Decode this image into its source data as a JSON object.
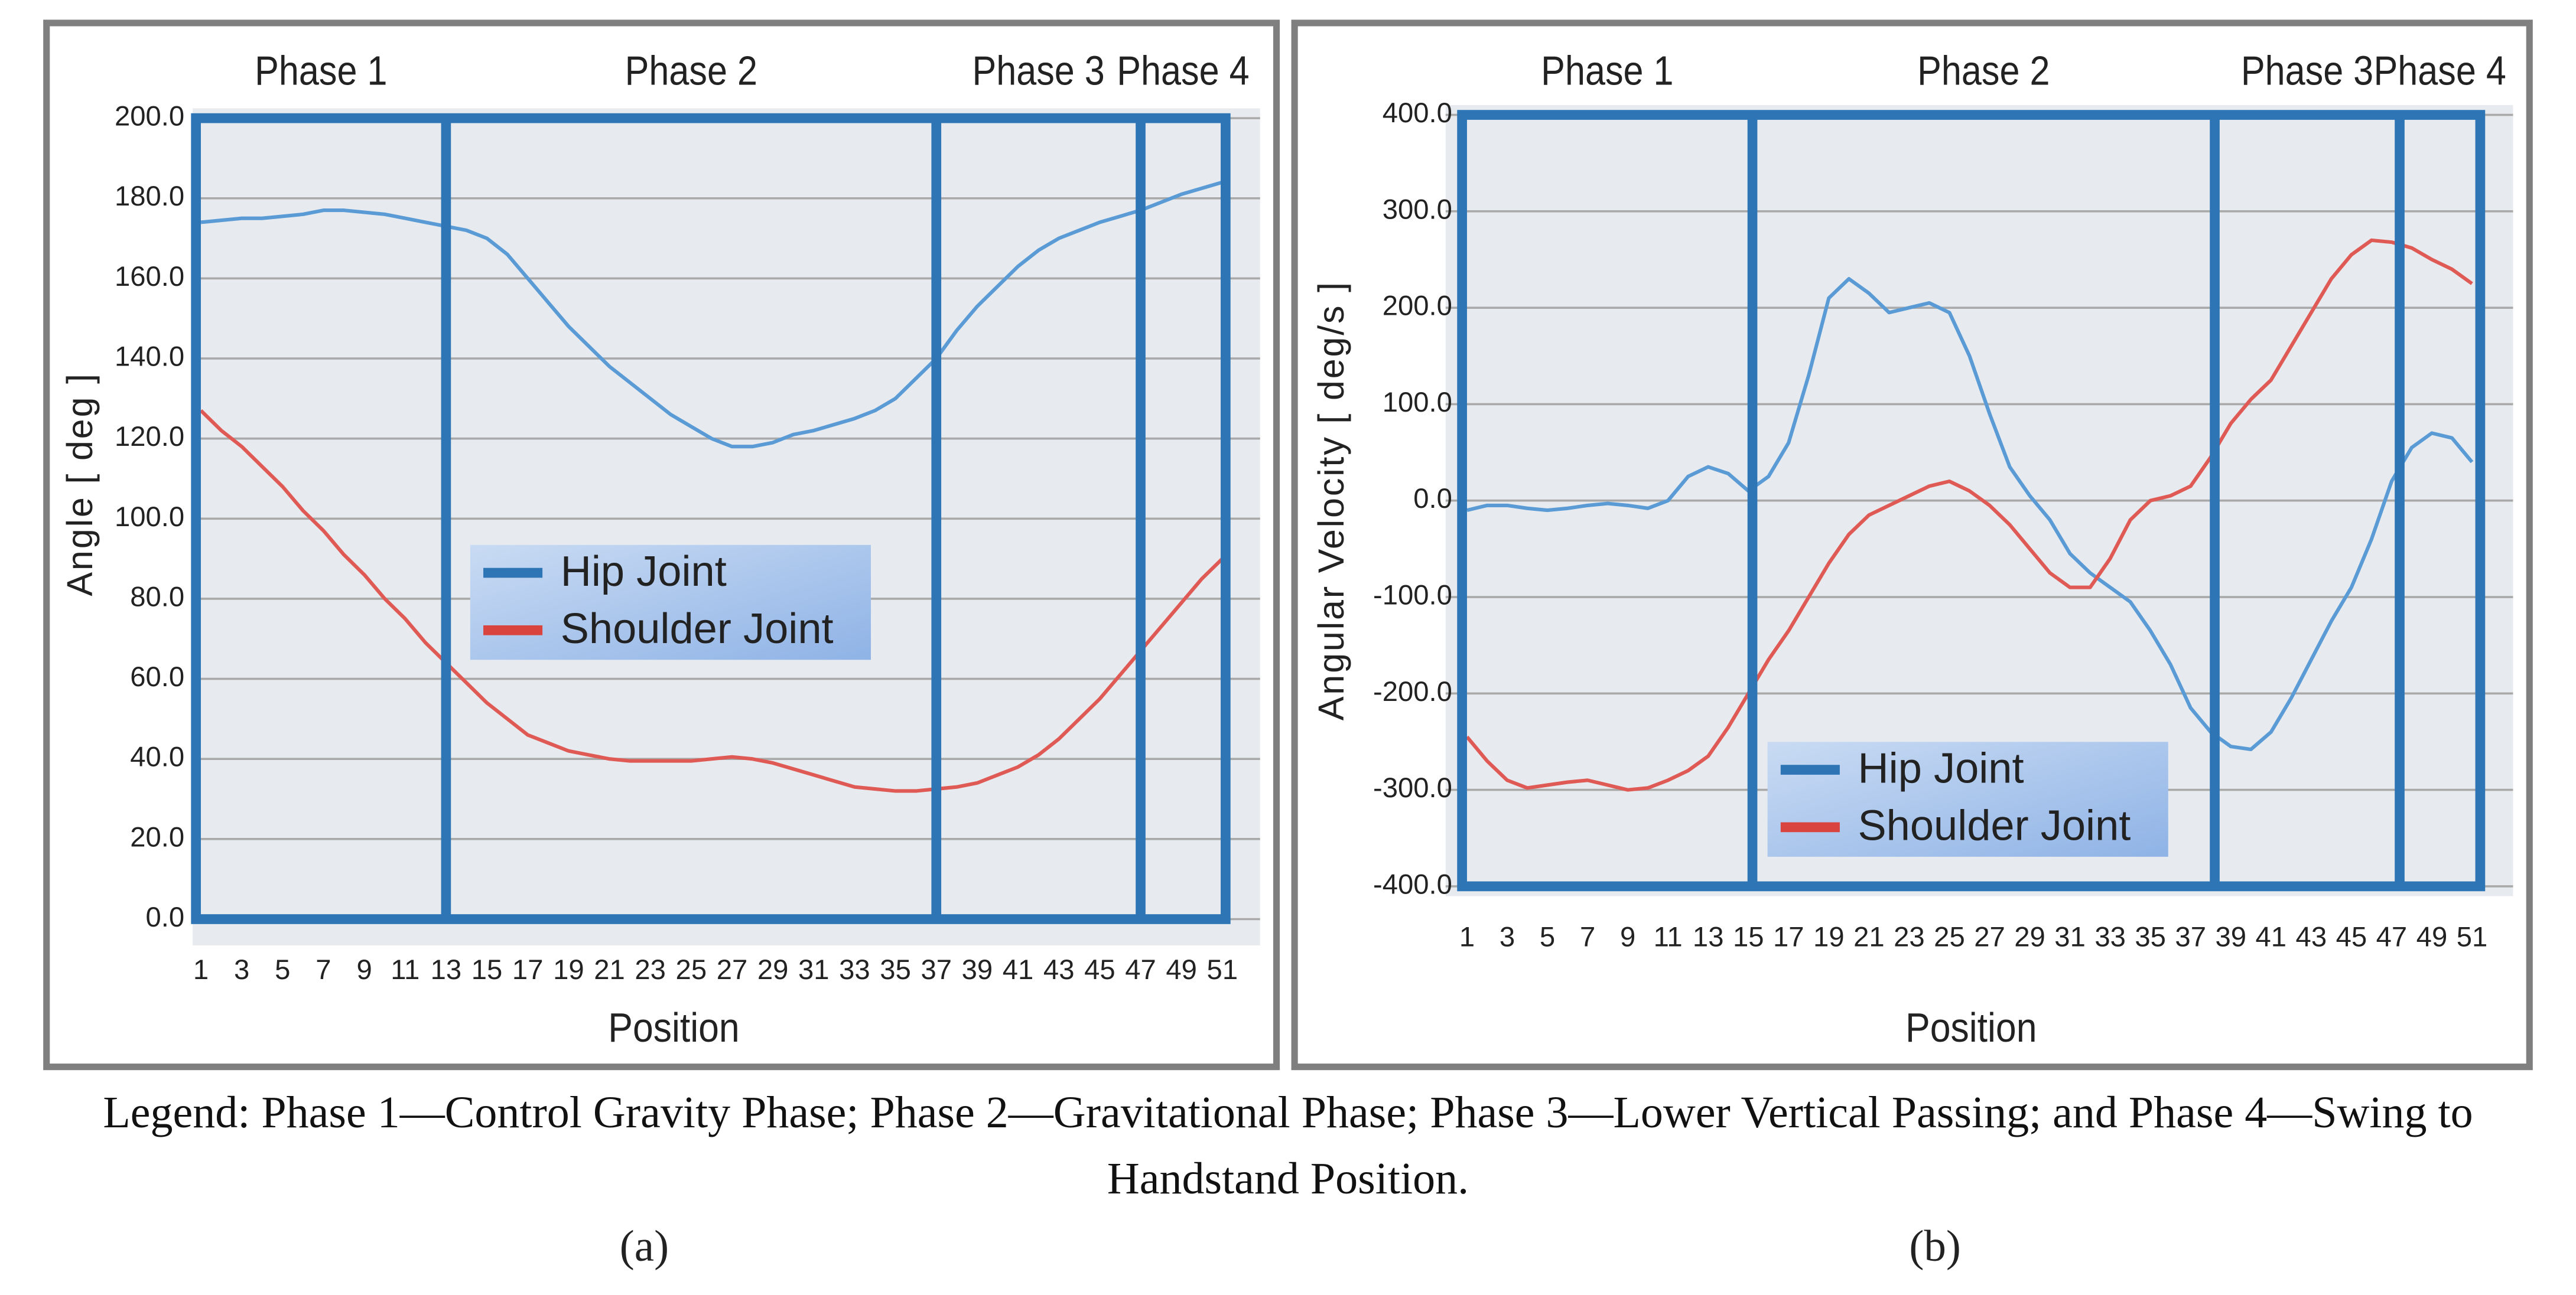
{
  "chart_data": [
    {
      "type": "line",
      "y_label": "Angle [ deg ]",
      "x_label": "Position",
      "panel_label": "(a)",
      "x": [
        1,
        2,
        3,
        4,
        5,
        6,
        7,
        8,
        9,
        10,
        11,
        12,
        13,
        14,
        15,
        16,
        17,
        18,
        19,
        20,
        21,
        22,
        23,
        24,
        25,
        26,
        27,
        28,
        29,
        30,
        31,
        32,
        33,
        34,
        35,
        36,
        37,
        38,
        39,
        40,
        41,
        42,
        43,
        44,
        45,
        46,
        47,
        48,
        49,
        50,
        51
      ],
      "xlim": [
        1,
        51
      ],
      "xticks": [
        1,
        3,
        5,
        7,
        9,
        11,
        13,
        15,
        17,
        19,
        21,
        23,
        25,
        27,
        29,
        31,
        33,
        35,
        37,
        39,
        41,
        43,
        45,
        47,
        49,
        51
      ],
      "ylim": [
        0,
        200
      ],
      "yticks": [
        {
          "value": 0,
          "label": "0.0"
        },
        {
          "value": 20,
          "label": "20.0"
        },
        {
          "value": 40,
          "label": "40.0"
        },
        {
          "value": 60,
          "label": "60.0"
        },
        {
          "value": 80,
          "label": "80.0"
        },
        {
          "value": 100,
          "label": "100.0"
        },
        {
          "value": 120,
          "label": "120.0"
        },
        {
          "value": 140,
          "label": "140.0"
        },
        {
          "value": 160,
          "label": "160.0"
        },
        {
          "value": 180,
          "label": "180.0"
        },
        {
          "value": 200,
          "label": "200.0"
        }
      ],
      "grid": true,
      "phases": [
        "Phase 1",
        "Phase 2",
        "Phase 3",
        "Phase 4"
      ],
      "phase_boundaries": [
        13,
        37,
        47
      ],
      "series": [
        {
          "name": "Hip Joint",
          "color": "#5b9bd5",
          "legend_color": "#2e75b6",
          "values": [
            174,
            174.5,
            175,
            175,
            175.5,
            176,
            177,
            177,
            176.5,
            176,
            175,
            174,
            173,
            172,
            170,
            166,
            160,
            154,
            148,
            143,
            138,
            134,
            130,
            126,
            123,
            120,
            118,
            118,
            119,
            121,
            122,
            123.5,
            125,
            127,
            130,
            135,
            140,
            147,
            153,
            158,
            163,
            167,
            170,
            172,
            174,
            175.5,
            177,
            179,
            181,
            182.5,
            184
          ]
        },
        {
          "name": "Shoulder Joint",
          "color": "#e05a55",
          "legend_color": "#d9443f",
          "values": [
            127,
            122,
            118,
            113,
            108,
            102,
            97,
            91,
            86,
            80,
            75,
            69,
            64,
            59,
            54,
            50,
            46,
            44,
            42,
            41,
            40,
            39.5,
            39.5,
            39.5,
            39.5,
            40,
            40.5,
            40,
            39,
            37.5,
            36,
            34.5,
            33,
            32.5,
            32,
            32,
            32.5,
            33,
            34,
            36,
            38,
            41,
            45,
            50,
            55,
            61,
            67,
            73,
            79,
            85,
            90
          ]
        }
      ]
    },
    {
      "type": "line",
      "y_label": "Angular Velocity [ deg/s ]",
      "x_label": "Position",
      "panel_label": "(b)",
      "x": [
        1,
        2,
        3,
        4,
        5,
        6,
        7,
        8,
        9,
        10,
        11,
        12,
        13,
        14,
        15,
        16,
        17,
        18,
        19,
        20,
        21,
        22,
        23,
        24,
        25,
        26,
        27,
        28,
        29,
        30,
        31,
        32,
        33,
        34,
        35,
        36,
        37,
        38,
        39,
        40,
        41,
        42,
        43,
        44,
        45,
        46,
        47,
        48,
        49,
        50,
        51
      ],
      "xlim": [
        1,
        51
      ],
      "xticks": [
        1,
        3,
        5,
        7,
        9,
        11,
        13,
        15,
        17,
        19,
        21,
        23,
        25,
        27,
        29,
        31,
        33,
        35,
        37,
        39,
        41,
        43,
        45,
        47,
        49,
        51
      ],
      "ylim": [
        -400,
        400
      ],
      "yticks": [
        {
          "value": -400,
          "label": "-400.0"
        },
        {
          "value": -300,
          "label": "-300.0"
        },
        {
          "value": -200,
          "label": "-200.0"
        },
        {
          "value": -100,
          "label": "-100.0"
        },
        {
          "value": 0,
          "label": "0.0"
        },
        {
          "value": 100,
          "label": "100.0"
        },
        {
          "value": 200,
          "label": "200.0"
        },
        {
          "value": 300,
          "label": "300.0"
        },
        {
          "value": 400,
          "label": "400.0"
        }
      ],
      "grid": true,
      "phases": [
        "Phase 1",
        "Phase 2",
        "Phase 3",
        "Phase 4"
      ],
      "phase_boundaries": [
        15.2,
        38.2,
        47.4
      ],
      "series": [
        {
          "name": "Hip Joint",
          "color": "#5b9bd5",
          "legend_color": "#2e75b6",
          "values": [
            -10,
            -5,
            -5,
            -8,
            -10,
            -8,
            -5,
            -3,
            -5,
            -8,
            0,
            25,
            35,
            28,
            10,
            25,
            60,
            130,
            210,
            230,
            215,
            195,
            200,
            205,
            195,
            150,
            90,
            35,
            5,
            -20,
            -55,
            -75,
            -90,
            -105,
            -135,
            -170,
            -215,
            -240,
            -255,
            -258,
            -240,
            -205,
            -165,
            -125,
            -90,
            -40,
            20,
            55,
            70,
            65,
            40
          ]
        },
        {
          "name": "Shoulder Joint",
          "color": "#e05a55",
          "legend_color": "#d9443f",
          "values": [
            -245,
            -270,
            -290,
            -298,
            -295,
            -292,
            -290,
            -295,
            -300,
            -298,
            -290,
            -280,
            -265,
            -235,
            -200,
            -165,
            -135,
            -100,
            -65,
            -35,
            -15,
            -5,
            5,
            15,
            20,
            10,
            -5,
            -25,
            -50,
            -75,
            -90,
            -90,
            -60,
            -20,
            0,
            5,
            15,
            45,
            80,
            105,
            125,
            160,
            195,
            230,
            255,
            270,
            268,
            262,
            250,
            240,
            225
          ]
        }
      ]
    }
  ],
  "caption": "Legend: Phase 1—Control Gravity Phase; Phase 2—Gravitational Phase; Phase 3—Lower Vertical Passing; and Phase 4—Swing to Handstand Position."
}
